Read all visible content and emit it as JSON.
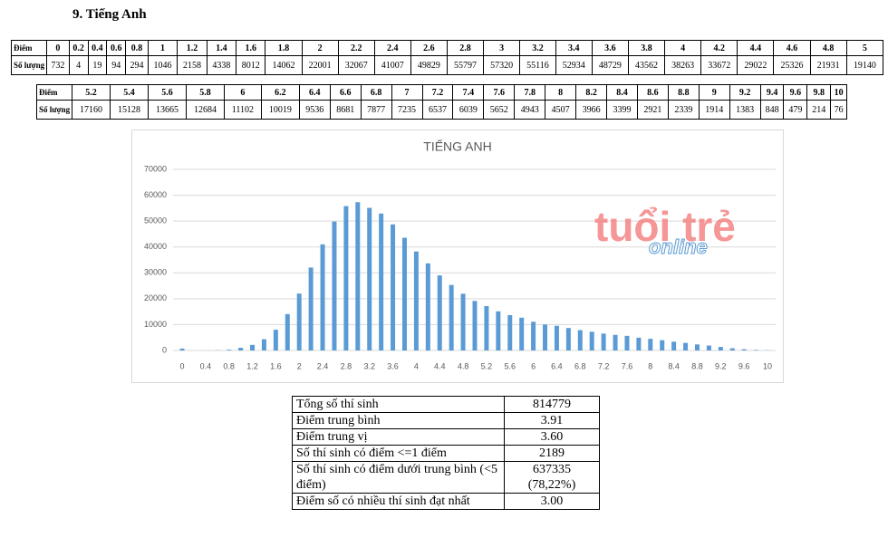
{
  "heading": "9.  Tiếng Anh",
  "table1": {
    "header_label": "Điểm",
    "row_label": "Số lượng",
    "scores": [
      0,
      0.2,
      0.4,
      0.6,
      0.8,
      1,
      1.2,
      1.4,
      1.6,
      1.8,
      2,
      2.2,
      2.4,
      2.6,
      2.8,
      3,
      3.2,
      3.4,
      3.6,
      3.8,
      4,
      4.2,
      4.4,
      4.6,
      4.8,
      5
    ],
    "counts": [
      732,
      4,
      19,
      94,
      294,
      1046,
      2158,
      4338,
      8012,
      14062,
      22001,
      32067,
      41007,
      49829,
      55797,
      57320,
      55116,
      52934,
      48729,
      43562,
      38263,
      33672,
      29022,
      25326,
      21931,
      19140
    ]
  },
  "table2": {
    "header_label": "Điểm",
    "row_label": "Số lượng",
    "scores": [
      5.2,
      5.4,
      5.6,
      5.8,
      6,
      6.2,
      6.4,
      6.6,
      6.8,
      7,
      7.2,
      7.4,
      7.6,
      7.8,
      8,
      8.2,
      8.4,
      8.6,
      8.8,
      9,
      9.2,
      9.4,
      9.6,
      9.8,
      10
    ],
    "counts": [
      17160,
      15128,
      13665,
      12684,
      11102,
      10019,
      9536,
      8681,
      7877,
      7235,
      6537,
      6039,
      5652,
      4943,
      4507,
      3966,
      3399,
      2921,
      2339,
      1914,
      1383,
      848,
      479,
      214,
      76
    ]
  },
  "chart_data": {
    "type": "bar",
    "title": "TIẾNG ANH",
    "color": "#5b9bd5",
    "categories": [
      "0",
      null,
      "0.4",
      null,
      "0.8",
      null,
      "1.2",
      null,
      "1.6",
      null,
      "2",
      null,
      "2.4",
      null,
      "2.8",
      null,
      "3.2",
      null,
      "3.6",
      null,
      "4",
      null,
      "4.4",
      null,
      "4.8",
      null,
      "5.2",
      null,
      "5.6",
      null,
      "6",
      null,
      "6.4",
      null,
      "6.8",
      null,
      "7.2",
      null,
      "7.6",
      null,
      "8",
      null,
      "8.4",
      null,
      "8.8",
      null,
      "9.2",
      null,
      "9.6",
      null,
      "10"
    ],
    "values": [
      732,
      4,
      19,
      94,
      294,
      1046,
      2158,
      4338,
      8012,
      14062,
      22001,
      32067,
      41007,
      49829,
      55797,
      57320,
      55116,
      52934,
      48729,
      43562,
      38263,
      33672,
      29022,
      25326,
      21931,
      19140,
      17160,
      15128,
      13665,
      12684,
      11102,
      10019,
      9536,
      8681,
      7877,
      7235,
      6537,
      6039,
      5652,
      4943,
      4507,
      3966,
      3399,
      2921,
      2339,
      1914,
      1383,
      848,
      479,
      214,
      76
    ],
    "ylim": [
      0,
      70000
    ],
    "yticks": [
      0,
      10000,
      20000,
      30000,
      40000,
      50000,
      60000,
      70000
    ],
    "grid": true,
    "watermark": [
      "tuổi trẻ",
      "online"
    ]
  },
  "stats": [
    [
      "Tổng số thí sinh",
      "814779"
    ],
    [
      "Điểm trung bình",
      "3.91"
    ],
    [
      "Điểm trung vị",
      "3.60"
    ],
    [
      "Số thí sinh có điểm <=1 điểm",
      "2189"
    ],
    [
      "Số thí sinh có điểm dưới trung bình (<5 điểm)",
      "637335 (78,22%)"
    ],
    [
      "Điểm số có nhiều thí sinh đạt nhất",
      "3.00"
    ]
  ]
}
